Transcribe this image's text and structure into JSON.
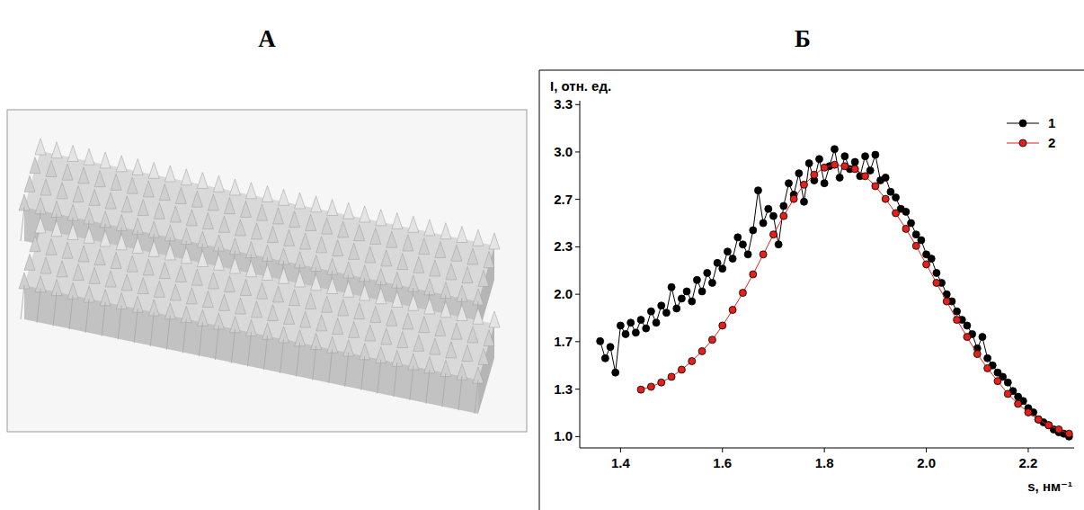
{
  "panel_labels": [
    "А",
    "Б"
  ],
  "chart_data": {
    "type": "line",
    "y_label": "I, отн. ед.",
    "x_label": "s, нм⁻¹",
    "xlim": [
      1.32,
      2.29
    ],
    "ylim": [
      0.92,
      3.36
    ],
    "xticks": [
      1.4,
      1.6,
      1.8,
      {
        "value": 2,
        "label": "2.0"
      },
      2.2
    ],
    "yticks": [
      {
        "value": 1,
        "label": "1.0"
      },
      {
        "value": 1.333,
        "label": "1.3"
      },
      {
        "value": 1.667,
        "label": "1.7"
      },
      {
        "value": 2,
        "label": "2.0"
      },
      {
        "value": 2.333,
        "label": "2.3"
      },
      {
        "value": 2.667,
        "label": "2.7"
      },
      {
        "value": 3,
        "label": "3.0"
      },
      {
        "value": 3.333,
        "label": "3.3"
      }
    ],
    "grid": false,
    "legend": "upper right",
    "series": [
      {
        "name": "1",
        "color": "#000000",
        "marker": "circle",
        "line_style": "solid",
        "x": [
          1.36,
          1.37,
          1.38,
          1.39,
          1.4,
          1.41,
          1.42,
          1.43,
          1.44,
          1.45,
          1.46,
          1.47,
          1.48,
          1.49,
          1.5,
          1.51,
          1.52,
          1.53,
          1.54,
          1.55,
          1.56,
          1.57,
          1.58,
          1.59,
          1.6,
          1.61,
          1.62,
          1.63,
          1.64,
          1.65,
          1.66,
          1.67,
          1.68,
          1.69,
          1.7,
          1.71,
          1.72,
          1.73,
          1.74,
          1.75,
          1.76,
          1.77,
          1.78,
          1.79,
          1.8,
          1.81,
          1.82,
          1.83,
          1.84,
          1.85,
          1.86,
          1.87,
          1.88,
          1.89,
          1.9,
          1.91,
          1.92,
          1.93,
          1.94,
          1.95,
          1.96,
          1.97,
          1.98,
          1.99,
          2.0,
          2.01,
          2.02,
          2.03,
          2.04,
          2.05,
          2.06,
          2.07,
          2.08,
          2.09,
          2.1,
          2.11,
          2.12,
          2.13,
          2.14,
          2.15,
          2.16,
          2.17,
          2.18,
          2.19,
          2.2,
          2.21,
          2.22,
          2.23,
          2.24,
          2.25,
          2.26,
          2.27,
          2.28
        ],
        "values": [
          1.67,
          1.55,
          1.63,
          1.45,
          1.78,
          1.72,
          1.8,
          1.73,
          1.82,
          1.76,
          1.88,
          1.8,
          1.92,
          1.87,
          2.05,
          1.9,
          1.97,
          2.02,
          1.95,
          2.1,
          2.02,
          2.15,
          2.08,
          2.22,
          2.18,
          2.3,
          2.25,
          2.4,
          2.35,
          2.28,
          2.45,
          2.73,
          2.5,
          2.6,
          2.55,
          2.35,
          2.62,
          2.78,
          2.7,
          2.85,
          2.65,
          2.92,
          2.8,
          2.95,
          2.78,
          2.9,
          3.02,
          2.82,
          2.97,
          2.88,
          2.93,
          2.83,
          2.97,
          2.87,
          2.98,
          2.8,
          2.82,
          2.72,
          2.68,
          2.6,
          2.58,
          2.5,
          2.42,
          2.38,
          2.28,
          2.25,
          2.15,
          2.08,
          2.0,
          1.95,
          1.88,
          1.82,
          1.78,
          1.72,
          1.62,
          1.7,
          1.55,
          1.5,
          1.45,
          1.42,
          1.38,
          1.32,
          1.28,
          1.25,
          1.2,
          1.17,
          1.12,
          1.1,
          1.08,
          1.05,
          1.03,
          1.02,
          1.0
        ]
      },
      {
        "name": "2",
        "color": "#e3201b",
        "marker": "circle",
        "line_style": "solid",
        "x": [
          1.44,
          1.46,
          1.48,
          1.5,
          1.52,
          1.54,
          1.56,
          1.58,
          1.6,
          1.62,
          1.64,
          1.66,
          1.68,
          1.7,
          1.72,
          1.74,
          1.76,
          1.78,
          1.8,
          1.82,
          1.84,
          1.86,
          1.88,
          1.9,
          1.92,
          1.94,
          1.96,
          1.98,
          2.0,
          2.02,
          2.04,
          2.06,
          2.08,
          2.1,
          2.12,
          2.14,
          2.16,
          2.18,
          2.2,
          2.22,
          2.24,
          2.26,
          2.28
        ],
        "values": [
          1.33,
          1.35,
          1.38,
          1.42,
          1.47,
          1.53,
          1.6,
          1.68,
          1.78,
          1.89,
          2.01,
          2.14,
          2.28,
          2.42,
          2.55,
          2.67,
          2.77,
          2.84,
          2.89,
          2.91,
          2.9,
          2.88,
          2.83,
          2.76,
          2.67,
          2.57,
          2.46,
          2.34,
          2.21,
          2.08,
          1.95,
          1.82,
          1.7,
          1.58,
          1.48,
          1.39,
          1.3,
          1.23,
          1.17,
          1.12,
          1.08,
          1.05,
          1.02
        ]
      }
    ]
  }
}
